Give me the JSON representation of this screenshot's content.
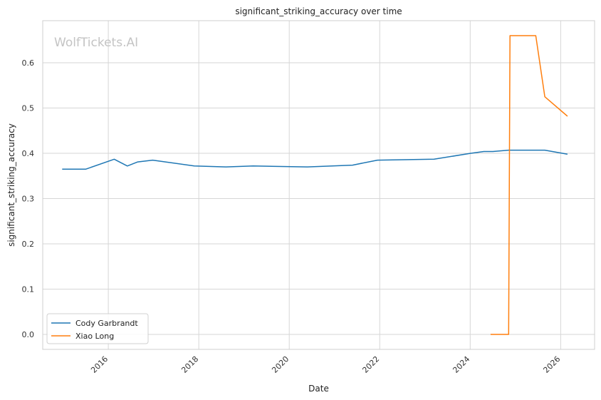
{
  "chart_data": {
    "type": "line",
    "title": "significant_striking_accuracy over time",
    "xlabel": "Date",
    "ylabel": "significant_striking_accuracy",
    "watermark": "WolfTickets.AI",
    "xlim": [
      2014.55,
      2026.75
    ],
    "ylim": [
      -0.033,
      0.693
    ],
    "x_ticks": [
      2016,
      2018,
      2020,
      2022,
      2024,
      2026
    ],
    "x_tick_labels": [
      "2016",
      "2018",
      "2020",
      "2022",
      "2024",
      "2026"
    ],
    "y_ticks": [
      0.0,
      0.1,
      0.2,
      0.3,
      0.4,
      0.5,
      0.6
    ],
    "y_tick_labels": [
      "0.0",
      "0.1",
      "0.2",
      "0.3",
      "0.4",
      "0.5",
      "0.6"
    ],
    "grid": true,
    "legend_position": "lower-left",
    "series": [
      {
        "name": "Cody Garbrandt",
        "color": "#1f77b4",
        "x": [
          2014.98,
          2015.5,
          2016.13,
          2016.42,
          2016.65,
          2016.98,
          2017.9,
          2018.6,
          2019.2,
          2020.4,
          2021.4,
          2021.95,
          2023.2,
          2024.0,
          2024.3,
          2024.5,
          2024.85,
          2025.65,
          2026.15
        ],
        "y": [
          0.365,
          0.365,
          0.387,
          0.372,
          0.381,
          0.385,
          0.372,
          0.37,
          0.372,
          0.37,
          0.374,
          0.385,
          0.387,
          0.4,
          0.404,
          0.404,
          0.407,
          0.407,
          0.398
        ]
      },
      {
        "name": "Xiao Long",
        "color": "#ff7f0e",
        "x": [
          2024.45,
          2024.85,
          2024.88,
          2025.45,
          2025.65,
          2026.15
        ],
        "y": [
          0.0,
          0.0,
          0.66,
          0.66,
          0.525,
          0.482
        ]
      }
    ]
  }
}
